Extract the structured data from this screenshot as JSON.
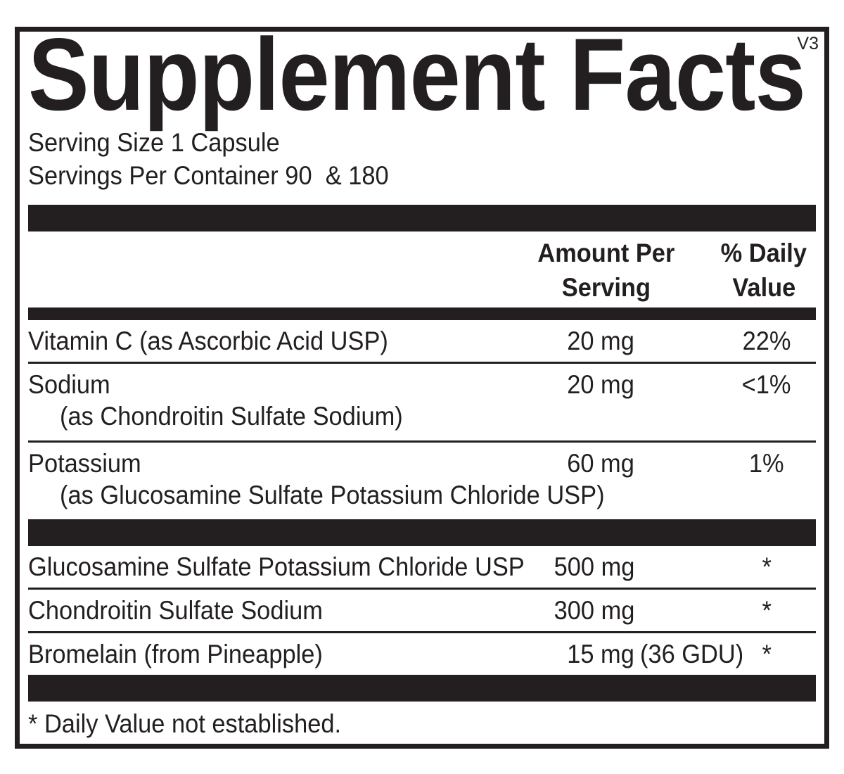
{
  "label": {
    "version": "V3",
    "title": "Supplement Facts",
    "serving_size": "Serving Size 1 Capsule",
    "servings_per_container": "Servings Per Container 90  & 180",
    "column_headers": {
      "amount_line1": "Amount Per",
      "amount_line2": "Serving",
      "dv_line1": "% Daily",
      "dv_line2": "Value"
    },
    "nutrients": [
      {
        "name": "Vitamin C (as Ascorbic Acid USP)",
        "source": "",
        "amount": "20 mg",
        "amount_suffix": "",
        "daily_value": "22%"
      },
      {
        "name": "Sodium",
        "source": "(as Chondroitin Sulfate Sodium)",
        "amount": "20 mg",
        "amount_suffix": "",
        "daily_value": "<1%"
      },
      {
        "name": "Potassium",
        "source": "(as Glucosamine Sulfate Potassium Chloride USP)",
        "amount": "60 mg",
        "amount_suffix": "",
        "daily_value": "1%"
      }
    ],
    "ingredients": [
      {
        "name": "Glucosamine Sulfate Potassium Chloride USP",
        "amount": "500 mg",
        "amount_suffix": "",
        "daily_value": "*"
      },
      {
        "name": "Chondroitin Sulfate Sodium",
        "amount": "300 mg",
        "amount_suffix": "",
        "daily_value": "*"
      },
      {
        "name": "Bromelain (from Pineapple)",
        "amount": "15 mg",
        "amount_suffix": "(36 GDU)",
        "daily_value": "*"
      }
    ],
    "footnote": "* Daily Value not established.",
    "colors": {
      "ink": "#231f20",
      "background": "#ffffff"
    }
  }
}
